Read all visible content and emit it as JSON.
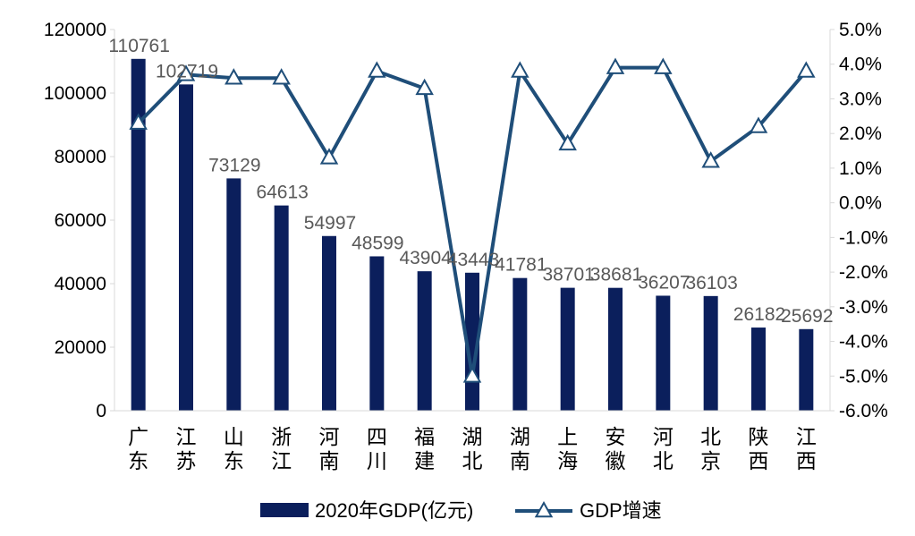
{
  "chart_data": {
    "type": "bar+line",
    "categories": [
      "广东",
      "江苏",
      "山东",
      "浙江",
      "河南",
      "四川",
      "福建",
      "湖北",
      "湖南",
      "上海",
      "安徽",
      "河北",
      "北京",
      "陕西",
      "江西"
    ],
    "series": [
      {
        "name": "2020年GDP(亿元)",
        "type": "bar",
        "axis": "left",
        "values": [
          110761,
          102719,
          73129,
          64613,
          54997,
          48599,
          43904,
          43443,
          41781,
          38701,
          38681,
          36207,
          36103,
          26182,
          25692
        ],
        "labels": [
          "110761",
          "102719",
          "73129",
          "64613",
          "54997",
          "48599",
          "43904",
          "43443",
          "41781",
          "38701",
          "38681",
          "36207",
          "36103",
          "26182",
          "25692"
        ]
      },
      {
        "name": "GDP增速",
        "type": "line",
        "axis": "right",
        "marker": "triangle",
        "values": [
          2.3,
          3.7,
          3.6,
          3.6,
          1.3,
          3.8,
          3.3,
          -5.0,
          3.8,
          1.7,
          3.9,
          3.9,
          1.2,
          2.2,
          3.8
        ]
      }
    ],
    "left_axis": {
      "ylim": [
        0,
        120000
      ],
      "ticks": [
        "0",
        "20000",
        "40000",
        "60000",
        "80000",
        "100000",
        "120000"
      ]
    },
    "right_axis": {
      "ylim": [
        -6.0,
        5.0
      ],
      "ticks": [
        "-6.0%",
        "-5.0%",
        "-4.0%",
        "-3.0%",
        "-2.0%",
        "-1.0%",
        "0.0%",
        "1.0%",
        "2.0%",
        "3.0%",
        "4.0%",
        "5.0%"
      ]
    },
    "grid": false,
    "legend": "bottom",
    "colors": {
      "bar": "#0b1f5c",
      "line": "#1f4e79",
      "marker_fill": "#ffffff"
    }
  }
}
